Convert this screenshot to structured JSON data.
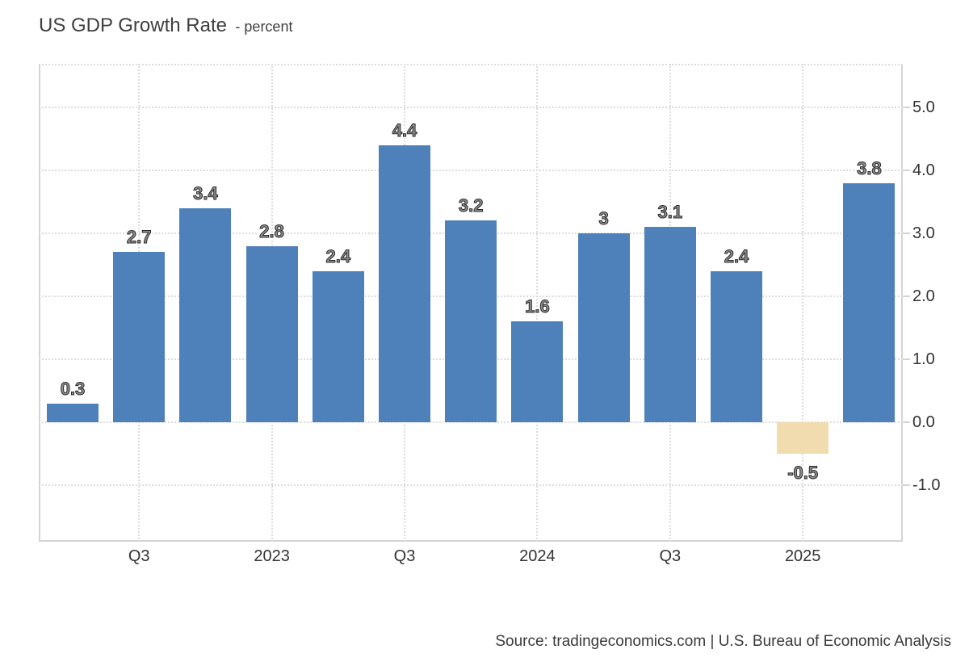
{
  "page": {
    "title_main": "US GDP Growth Rate",
    "title_sub": "- percent",
    "source": "Source: tradingeconomics.com | U.S. Bureau of Economic Analysis"
  },
  "colors": {
    "bar_positive": "#4e80ba",
    "bar_negative": "#f0dcae",
    "grid": "#dcdcdc",
    "frame": "#d4d4d4",
    "axis_text": "#333333",
    "value_label_fill": "#8e8e8e",
    "value_label_outline": "#2b2b2b"
  },
  "chart_data": {
    "type": "bar",
    "title": "US GDP Growth Rate",
    "unit": "percent",
    "values": [
      0.3,
      2.7,
      3.4,
      2.8,
      2.4,
      4.4,
      3.2,
      1.6,
      3,
      3.1,
      2.4,
      -0.5,
      3.8
    ],
    "bar_value_labels": [
      "0.3",
      "2.7",
      "3.4",
      "2.8",
      "2.4",
      "4.4",
      "3.2",
      "1.6",
      "3",
      "3.1",
      "2.4",
      "-0.5",
      "3.8"
    ],
    "negative_bar_indices": [
      11
    ],
    "x_axis": {
      "tick_labels": [
        "Q3",
        "2023",
        "Q3",
        "2024",
        "Q3",
        "2025"
      ],
      "tick_bar_indices": [
        1,
        3,
        5,
        7,
        9,
        11
      ]
    },
    "y_axis": {
      "side": "right",
      "tick_labels": [
        "5.0",
        "4.0",
        "3.0",
        "2.0",
        "1.0",
        "0.0",
        "-1.0"
      ],
      "tick_values": [
        5,
        4,
        3,
        2,
        1,
        0,
        -1
      ],
      "range_approx": [
        -1.9,
        5.7
      ]
    },
    "grid": "dotted",
    "legend": "none"
  }
}
